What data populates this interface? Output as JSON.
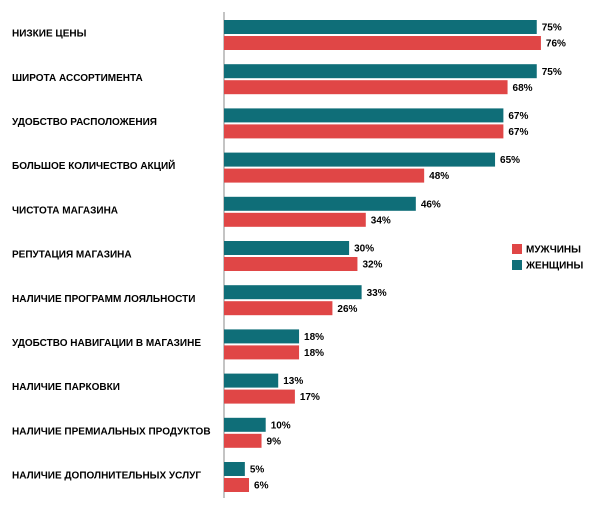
{
  "chart_data": {
    "type": "bar",
    "orientation": "horizontal",
    "categories": [
      "НИЗКИЕ ЦЕНЫ",
      "ШИРОТА АССОРТИМЕНТА",
      "УДОБСТВО РАСПОЛОЖЕНИЯ",
      "БОЛЬШОЕ КОЛИЧЕСТВО АКЦИЙ",
      "ЧИСТОТА МАГАЗИНА",
      "РЕПУТАЦИЯ МАГАЗИНА",
      "НАЛИЧИЕ ПРОГРАММ ЛОЯЛЬНОСТИ",
      "УДОБСТВО НАВИГАЦИИ В МАГАЗИНЕ",
      "НАЛИЧИЕ ПАРКОВКИ",
      "НАЛИЧИЕ ПРЕМИАЛЬНЫХ ПРОДУКТОВ",
      "НАЛИЧИЕ ДОПОЛНИТЕЛЬНЫХ УСЛУГ"
    ],
    "series": [
      {
        "name": "ЖЕНЩИНЫ",
        "color": "#0f6e78",
        "values": [
          75,
          75,
          67,
          65,
          46,
          30,
          33,
          18,
          13,
          10,
          5
        ],
        "value_labels": [
          "75%",
          "75%",
          "67%",
          "65%",
          "46%",
          "30%",
          "33%",
          "18%",
          "13%",
          "10%",
          "5%"
        ]
      },
      {
        "name": "МУЖЧИНЫ",
        "color": "#e04646",
        "values": [
          76,
          68,
          67,
          48,
          34,
          32,
          26,
          18,
          17,
          9,
          6
        ],
        "value_labels": [
          "76%",
          "68%",
          "67%",
          "48%",
          "34%",
          "32%",
          "26%",
          "18%",
          "17%",
          "9%",
          "6%"
        ]
      }
    ],
    "legend_order": [
      1,
      0
    ]
  }
}
